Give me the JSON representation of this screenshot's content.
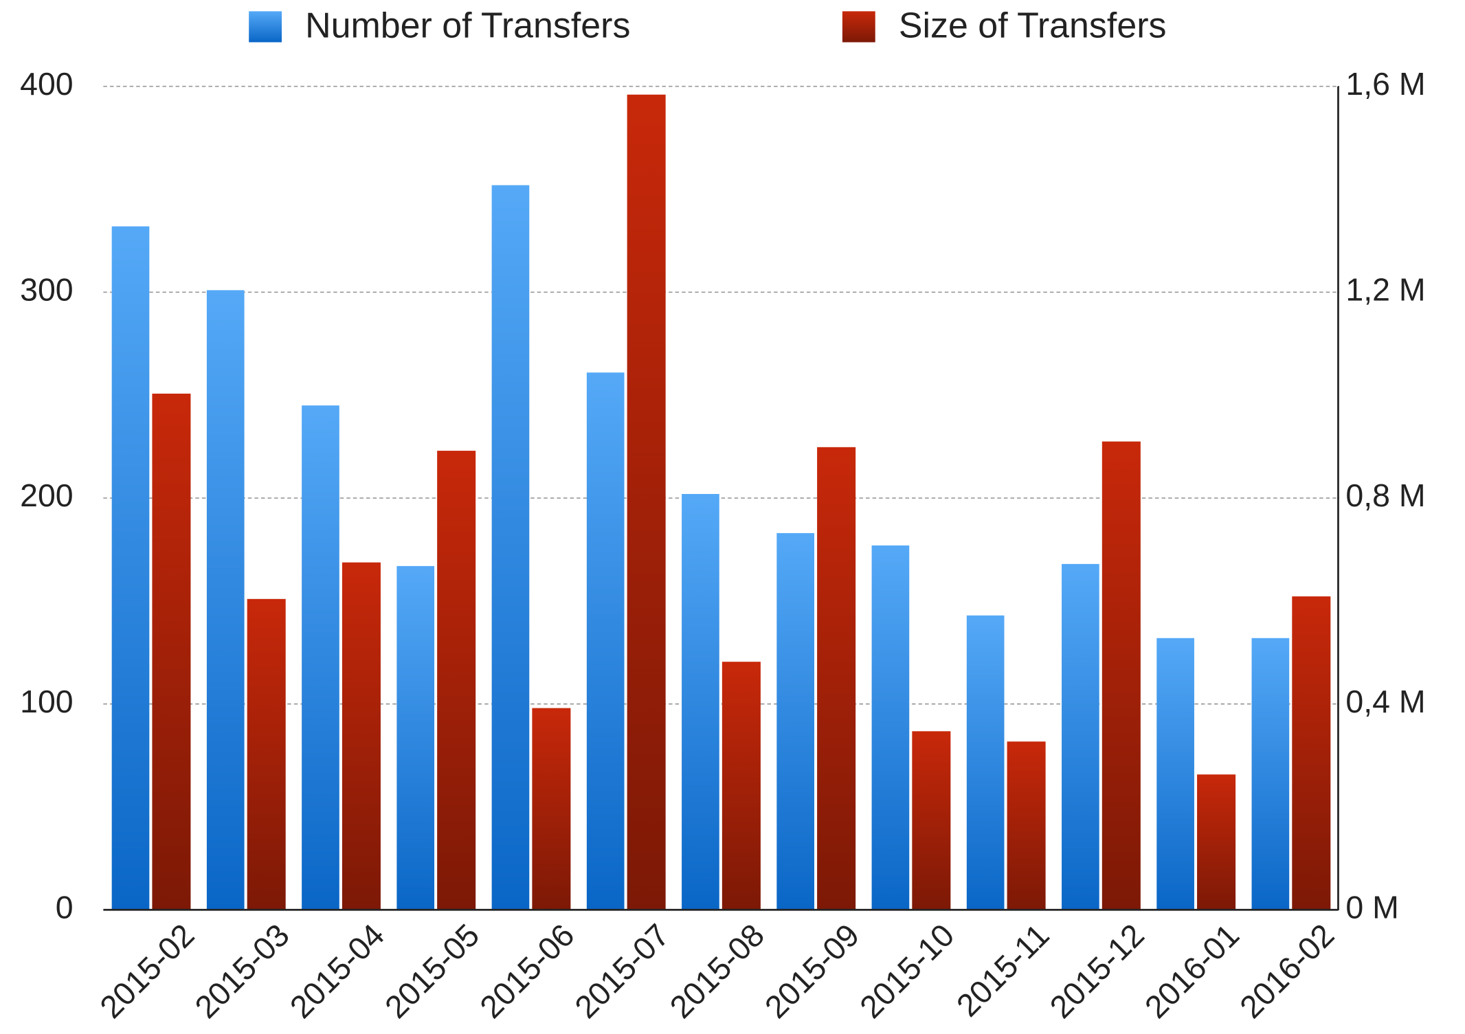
{
  "chart_data": {
    "type": "bar",
    "categories": [
      "2015-02",
      "2015-03",
      "2015-04",
      "2015-05",
      "2015-06",
      "2015-07",
      "2015-08",
      "2015-09",
      "2015-10",
      "2015-11",
      "2015-12",
      "2016-01",
      "2016-02"
    ],
    "series": [
      {
        "name": "Number of Transfers",
        "color": "#55a9f7",
        "values": [
          332,
          301,
          245,
          167,
          352,
          261,
          202,
          183,
          177,
          143,
          168,
          132,
          132
        ]
      },
      {
        "name": "Size of Transfers",
        "color": "#c8280a",
        "axis": "y2",
        "values": [
          1003000,
          604000,
          675000,
          892000,
          392000,
          1584000,
          482000,
          899000,
          347000,
          327000,
          910000,
          263000,
          609000
        ]
      }
    ],
    "ylim": [
      0,
      400
    ],
    "yticks": [
      0,
      100,
      200,
      300,
      400
    ],
    "y2lim": [
      0,
      1600000
    ],
    "y2ticks": [
      {
        "value": 0,
        "label": "0 M"
      },
      {
        "value": 400000,
        "label": "0,4 M"
      },
      {
        "value": 800000,
        "label": "0,8 M"
      },
      {
        "value": 1200000,
        "label": "1,2 M"
      },
      {
        "value": 1600000,
        "label": "1,6 M"
      }
    ],
    "grid": true,
    "legend": "top"
  }
}
